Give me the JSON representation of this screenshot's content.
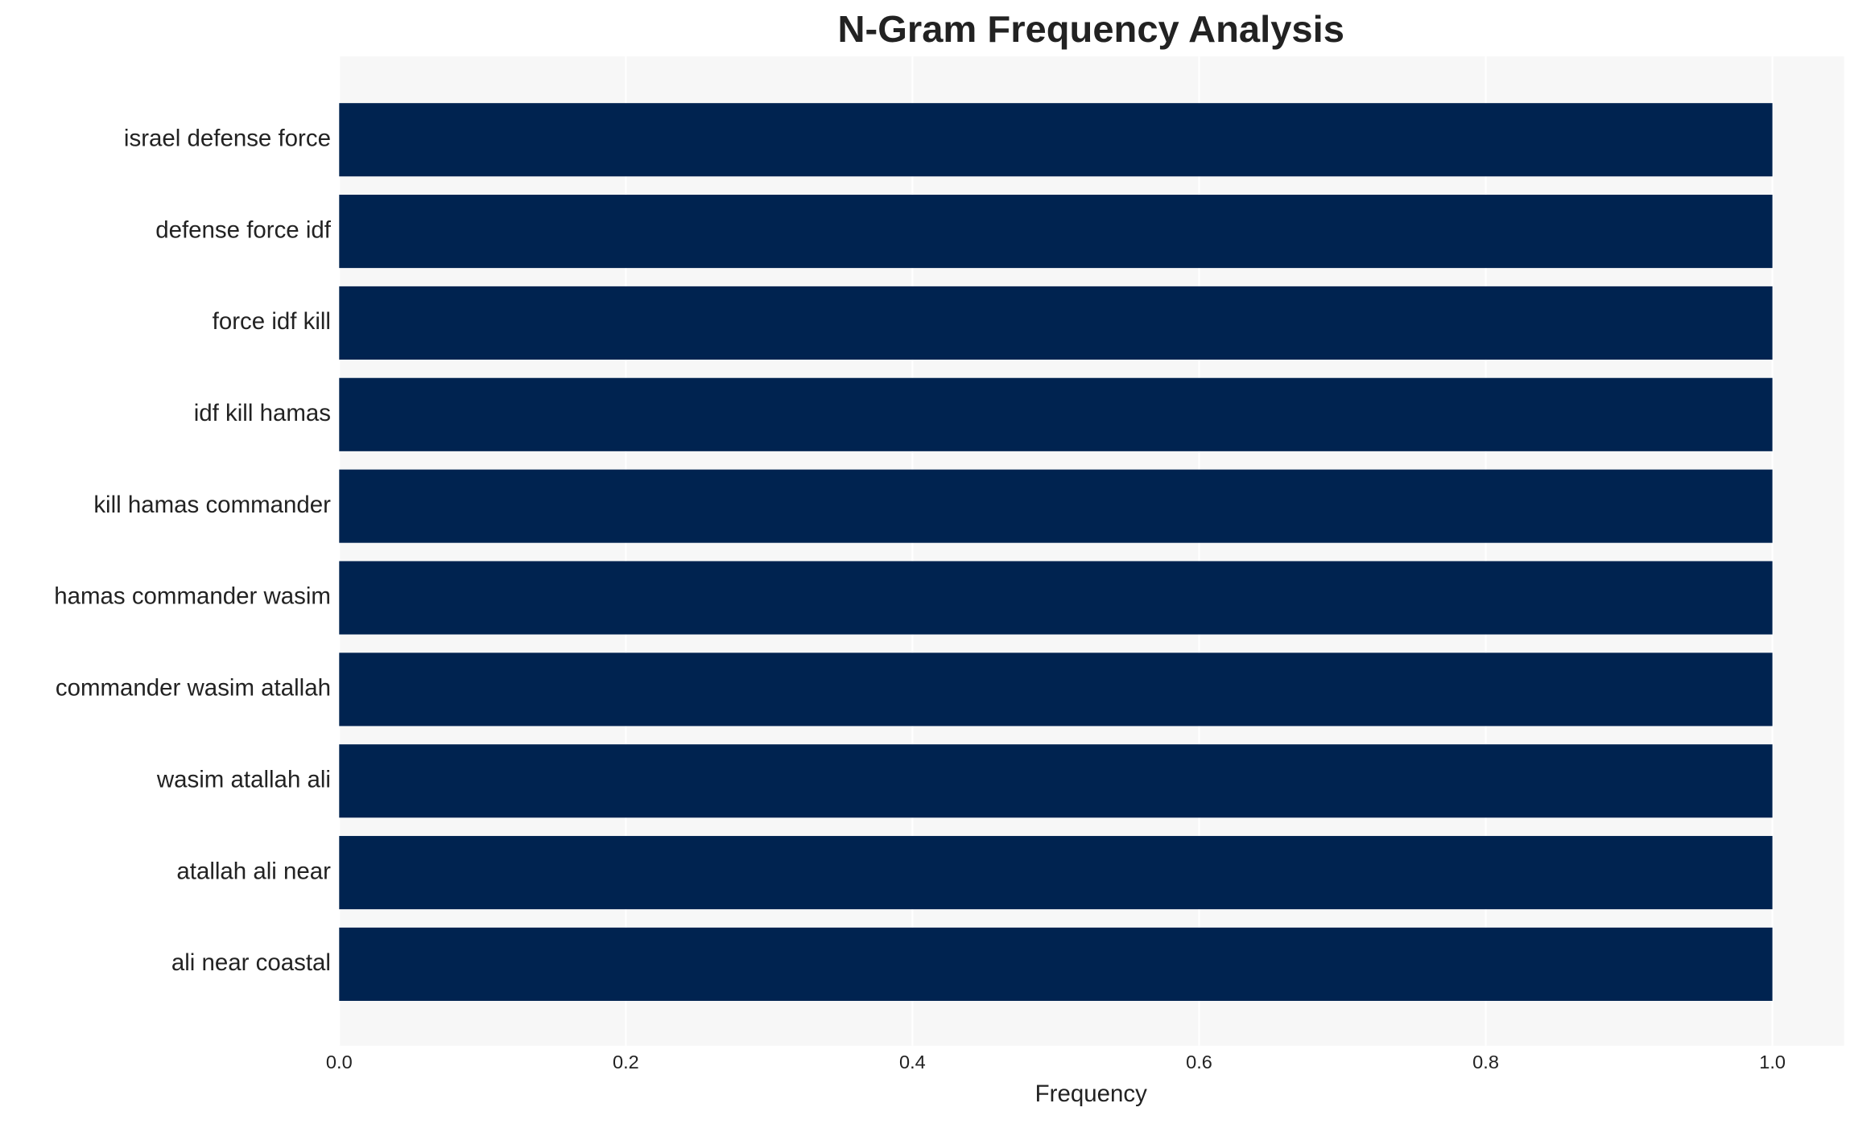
{
  "chart_data": {
    "type": "barh",
    "title": "N-Gram Frequency Analysis",
    "xlabel": "Frequency",
    "categories": [
      "israel defense force",
      "defense force idf",
      "force idf kill",
      "idf kill hamas",
      "kill hamas commander",
      "hamas commander wasim",
      "commander wasim atallah",
      "wasim atallah ali",
      "atallah ali near",
      "ali near coastal"
    ],
    "values": [
      1,
      1,
      1,
      1,
      1,
      1,
      1,
      1,
      1,
      1
    ],
    "color": "#002350",
    "xlim": [
      0,
      1.05
    ],
    "xticks": [
      {
        "value": 0,
        "label": "0.0"
      },
      {
        "value": 0.2,
        "label": "0.2"
      },
      {
        "value": 0.4,
        "label": "0.4"
      },
      {
        "value": 0.6,
        "label": "0.6"
      },
      {
        "value": 0.8,
        "label": "0.8"
      },
      {
        "value": 1,
        "label": "1.0"
      }
    ],
    "grid": true
  }
}
